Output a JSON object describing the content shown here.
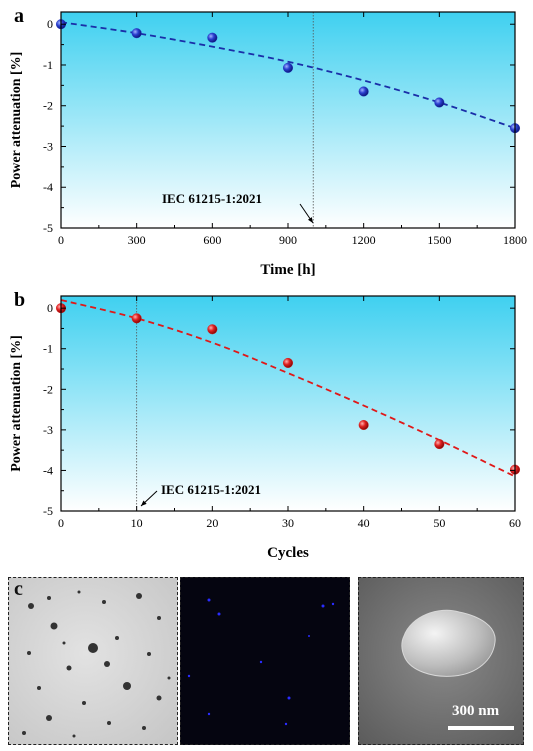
{
  "chart_data": [
    {
      "panel": "a",
      "type": "scatter",
      "xlabel": "Time [h]",
      "ylabel": "Power attenuation [%]",
      "xlim": [
        0,
        1800
      ],
      "ylim": [
        -5,
        0.3
      ],
      "xticks": [
        0,
        300,
        600,
        900,
        1200,
        1500,
        1800
      ],
      "yticks": [
        0,
        -1,
        -2,
        -3,
        -4,
        -5
      ],
      "x": [
        0,
        300,
        600,
        900,
        1200,
        1500,
        1800
      ],
      "y": [
        0.0,
        -0.22,
        -0.33,
        -1.07,
        -1.65,
        -1.92,
        -2.55
      ],
      "fit_x": [
        0,
        300,
        600,
        900,
        1200,
        1500,
        1800
      ],
      "fit_y": [
        0.05,
        -0.22,
        -0.55,
        -0.92,
        -1.38,
        -1.92,
        -2.55
      ],
      "vline_x": 1000,
      "annotation": "IEC 61215-1:2021",
      "marker_color": "#1f2fbf",
      "fit_color": "#1a2ea8"
    },
    {
      "panel": "b",
      "type": "scatter",
      "xlabel": "Cycles",
      "ylabel": "Power attenuation [%]",
      "xlim": [
        0,
        60
      ],
      "ylim": [
        -5,
        0.3
      ],
      "xticks": [
        0,
        10,
        20,
        30,
        40,
        50,
        60
      ],
      "yticks": [
        0,
        -1,
        -2,
        -3,
        -4,
        -5
      ],
      "x": [
        0,
        10,
        20,
        30,
        40,
        50,
        60
      ],
      "y": [
        0.0,
        -0.25,
        -0.52,
        -1.35,
        -2.88,
        -3.35,
        -3.98
      ],
      "fit_x": [
        0,
        10,
        20,
        30,
        40,
        50,
        60
      ],
      "fit_y": [
        0.2,
        -0.25,
        -0.85,
        -1.6,
        -2.4,
        -3.25,
        -4.15
      ],
      "vline_x": 10,
      "annotation": "IEC 61215-1:2021",
      "marker_color": "#e01818",
      "fit_color": "#e01818"
    }
  ],
  "panel_c": {
    "label": "c",
    "scale_bar_text": "300 nm"
  },
  "colors": {
    "bg_top": "#3fd0f0",
    "bg_bottom": "#ffffff"
  }
}
